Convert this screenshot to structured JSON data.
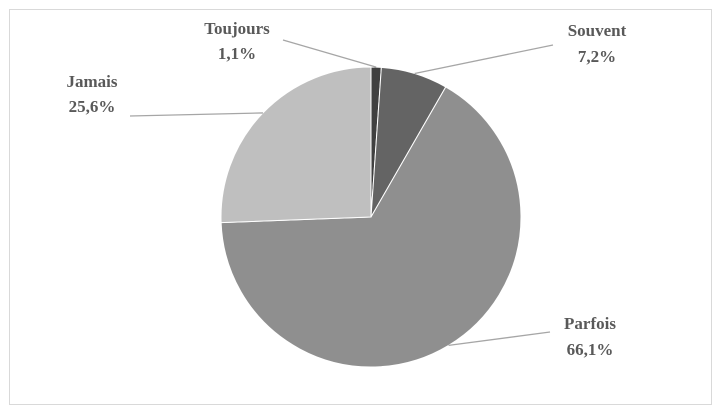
{
  "chart_data": {
    "type": "pie",
    "categories": [
      "Toujours",
      "Souvent",
      "Parfois",
      "Jamais"
    ],
    "values": [
      1.1,
      7.2,
      66.1,
      25.6
    ],
    "value_labels": [
      "1,1%",
      "7,2%",
      "66,1%",
      "25,6%"
    ],
    "colors": [
      "#404040",
      "#646464",
      "#8f8f8f",
      "#bfbfbf"
    ]
  }
}
